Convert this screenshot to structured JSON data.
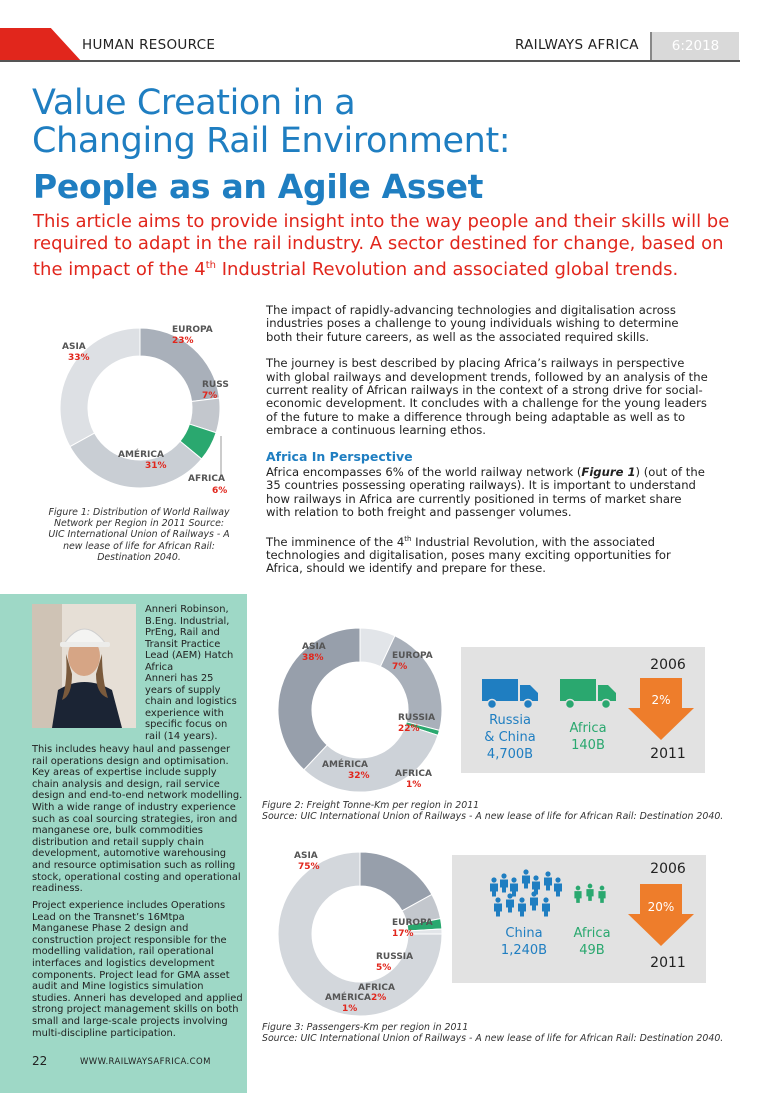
{
  "header": {
    "section": "HUMAN RESOURCE",
    "publication": "RAILWAYS AFRICA",
    "issue": "6:2018"
  },
  "title": {
    "line1": "Value Creation in a",
    "line2": "Changing Rail Environment:",
    "line3": "People as an Agile Asset"
  },
  "lead": {
    "part1": "This article aims to provide insight into the way people and their skills will be required to adapt in the rail industry. A sector destined for change, based on the impact of the 4",
    "sup": "th",
    "part2": " Industrial Revolution and associated global trends."
  },
  "body": {
    "p1": "The impact of rapidly-advancing technologies and digitalisation across industries poses a challenge to young individuals wishing to determine both their future careers, as well as the associated required skills.",
    "p2": "The journey is best described by placing Africa’s railways in perspective with global railways and development trends, followed by an analysis of the current reality of African railways in the context of a strong drive for social-economic development. It concludes with a challenge for the young leaders of the future to make a difference through being adaptable as well as to embrace a continuous learning ethos.",
    "heading": "Africa In Perspective",
    "p3a": "Africa encompasses 6% of the world railway network (",
    "p3ref": "Figure 1",
    "p3b": ") (out of the 35 countries possessing operating railways). It is important to understand how railways in Africa are currently positioned in terms of market share with relation to both freight and passenger volumes.",
    "p4a": "The imminence of the 4",
    "p4sup": "th",
    "p4b": " Industrial Revolution, with the associated technologies and digitalisation, poses many exciting opportunities for Africa, should we identify and prepare for these."
  },
  "fig1": {
    "caption": "Figure 1: Distribution of World Railway Network per Region in 2011 Source: UIC International Union of Railways - A new lease of life for African Rail: Destination 2040.",
    "labels": {
      "asia": "ASIA",
      "asia_pct": "33%",
      "europa": "EUROPA",
      "europa_pct": "23%",
      "russ": "RUSS",
      "russ_pct": "7%",
      "america": "AMÉRICA",
      "america_pct": "31%",
      "africa": "AFRICA",
      "africa_pct": "6%"
    }
  },
  "fig2": {
    "caption1": "Figure 2: Freight Tonne-Km per region in 2011",
    "caption2": "Source: UIC International Union of Railways - A new lease of life for African Rail: Destination 2040.",
    "labels": {
      "asia": "ASIA",
      "asia_pct": "38%",
      "europa": "EUROPA",
      "europa_pct": "7%",
      "russia": "RUSSIA",
      "russia_pct": "22%",
      "america": "AMÉRICA",
      "america_pct": "32%",
      "africa": "AFRICA",
      "africa_pct": "1%"
    },
    "info": {
      "year_start": "2006",
      "year_end": "2011",
      "change": "2%",
      "rc_line1": "Russia",
      "rc_line2": "& China",
      "rc_value": "4,700B",
      "af_label": "Africa",
      "af_value": "140B"
    }
  },
  "fig3": {
    "caption1": "Figure 3: Passengers-Km per region in 2011",
    "caption2": "Source: UIC International Union of Railways - A new lease of life for African Rail: Destination 2040.",
    "labels": {
      "asia": "ASIA",
      "asia_pct": "75%",
      "europa": "EUROPA",
      "europa_pct": "17%",
      "russia": "RUSSIA",
      "russia_pct": "5%",
      "america": "AMÉRICA",
      "america_pct": "1%",
      "africa": "AFRICA",
      "africa_pct": "2%"
    },
    "info": {
      "year_start": "2006",
      "year_end": "2011",
      "change": "20%",
      "ch_label": "China",
      "ch_value": "1,240B",
      "af_label": "Africa",
      "af_value": "49B"
    }
  },
  "bio": {
    "name_block": "Anneri Robinson, B.Eng. Industrial, PrEng, Rail and Transit Practice Lead (AEM) Hatch Africa",
    "p1a": "Anneri has 25 years of supply chain and logistics experience with specific focus on rail (14 years).",
    "p1b": "This includes heavy haul and passenger rail operations design and optimisation. Key areas of expertise include supply chain analysis and design, rail service design and end-to-end network modelling. With a wide range of industry experience such as coal sourcing strategies, iron and manganese ore, bulk commodities distribution and retail supply chain development, automotive warehousing and resource optimisation such as rolling stock, operational costing and operational readiness.",
    "p2": "Project experience includes Operations Lead on the Transnet’s 16Mtpa Manganese Phase 2 design and construction project responsible for the modelling validation, rail operational interfaces and logistics development components. Project lead for GMA asset audit and Mine logistics simulation studies. Anneri has developed and applied strong project management skills on both small and large-scale projects involving multi-discipline participation."
  },
  "footer": {
    "page": "22",
    "url": "WWW.RAILWAYSAFRICA.COM"
  },
  "colors": {
    "blue": "#1f7ec1",
    "red": "#e1261c",
    "green": "#2aa86f",
    "orange": "#ee7d2b",
    "teal": "#9ed8c6"
  }
}
